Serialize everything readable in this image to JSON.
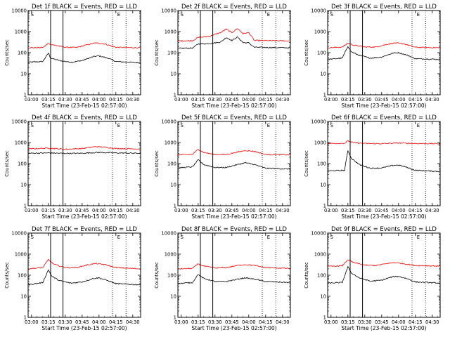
{
  "chart_data": {
    "type": "line",
    "xlabel": "Start Time (23-Feb-15 02:57:00)",
    "ylabel": "Counts/sec",
    "y_scale": "log",
    "ylim": [
      1,
      10000
    ],
    "y_ticks": [
      {
        "value": 1,
        "label": "1"
      },
      {
        "value": 10,
        "label": "10"
      },
      {
        "value": 100,
        "label": "100"
      },
      {
        "value": 1000,
        "label": "1000"
      },
      {
        "value": 10000,
        "label": "10000"
      }
    ],
    "x_ticks": [
      {
        "value": "03:00",
        "label": "03:00"
      },
      {
        "value": "03:15",
        "label": "03:15"
      },
      {
        "value": "03:30",
        "label": "03:30"
      },
      {
        "value": "03:45",
        "label": "03:45"
      },
      {
        "value": "04:00",
        "label": "04:00"
      },
      {
        "value": "04:15",
        "label": "04:15"
      },
      {
        "value": "04:30",
        "label": "04:30"
      }
    ],
    "xlim": [
      "02:57",
      "04:37"
    ],
    "series_colors": {
      "Events": "#000000",
      "LLD": "#ff0000"
    },
    "markers": {
      "solid_times": [
        "03:17",
        "03:28"
      ],
      "dotted_times": [
        "04:12",
        "04:24"
      ],
      "flag_labels": [
        "S",
        "E"
      ],
      "flag_times": [
        "02:58",
        "04:15"
      ]
    },
    "panels": [
      {
        "title": "Det 1f BLACK = Events, RED = LLD",
        "series": [
          {
            "color": "#000000",
            "points": [
              [
                "02:57",
                35
              ],
              [
                "03:10",
                38
              ],
              [
                "03:15",
                95
              ],
              [
                "03:17",
                55
              ],
              [
                "03:25",
                42
              ],
              [
                "03:35",
                35
              ],
              [
                "03:45",
                42
              ],
              [
                "03:55",
                65
              ],
              [
                "04:00",
                70
              ],
              [
                "04:08",
                55
              ],
              [
                "04:15",
                38
              ],
              [
                "04:37",
                33
              ]
            ]
          },
          {
            "color": "#ff0000",
            "points": [
              [
                "02:57",
                170
              ],
              [
                "03:10",
                175
              ],
              [
                "03:15",
                270
              ],
              [
                "03:20",
                230
              ],
              [
                "03:30",
                180
              ],
              [
                "03:40",
                175
              ],
              [
                "03:50",
                240
              ],
              [
                "03:57",
                290
              ],
              [
                "04:05",
                260
              ],
              [
                "04:15",
                180
              ],
              [
                "04:37",
                170
              ]
            ]
          }
        ]
      },
      {
        "title": "Det 2f BLACK = Events, RED = LLD",
        "series": [
          {
            "color": "#000000",
            "points": [
              [
                "02:57",
                160
              ],
              [
                "03:10",
                165
              ],
              [
                "03:15",
                260
              ],
              [
                "03:25",
                270
              ],
              [
                "03:35",
                320
              ],
              [
                "03:40",
                520
              ],
              [
                "03:45",
                380
              ],
              [
                "03:50",
                550
              ],
              [
                "03:55",
                300
              ],
              [
                "04:00",
                290
              ],
              [
                "04:05",
                180
              ],
              [
                "04:37",
                170
              ]
            ]
          },
          {
            "color": "#ff0000",
            "points": [
              [
                "02:57",
                360
              ],
              [
                "03:10",
                370
              ],
              [
                "03:15",
                520
              ],
              [
                "03:25",
                600
              ],
              [
                "03:35",
                900
              ],
              [
                "03:40",
                1300
              ],
              [
                "03:45",
                900
              ],
              [
                "03:50",
                1400
              ],
              [
                "03:55",
                800
              ],
              [
                "04:00",
                900
              ],
              [
                "04:05",
                380
              ],
              [
                "04:37",
                360
              ]
            ]
          }
        ]
      },
      {
        "title": "Det 3f BLACK = Events, RED = LLD",
        "series": [
          {
            "color": "#000000",
            "points": [
              [
                "02:57",
                48
              ],
              [
                "03:10",
                55
              ],
              [
                "03:15",
                200
              ],
              [
                "03:18",
                110
              ],
              [
                "03:25",
                75
              ],
              [
                "03:35",
                55
              ],
              [
                "03:45",
                62
              ],
              [
                "03:55",
                95
              ],
              [
                "04:00",
                100
              ],
              [
                "04:08",
                75
              ],
              [
                "04:15",
                52
              ],
              [
                "04:37",
                48
              ]
            ]
          },
          {
            "color": "#ff0000",
            "points": [
              [
                "02:57",
                170
              ],
              [
                "03:10",
                185
              ],
              [
                "03:15",
                280
              ],
              [
                "03:20",
                230
              ],
              [
                "03:30",
                185
              ],
              [
                "03:40",
                185
              ],
              [
                "03:50",
                250
              ],
              [
                "03:57",
                290
              ],
              [
                "04:05",
                260
              ],
              [
                "04:15",
                180
              ],
              [
                "04:37",
                170
              ]
            ]
          }
        ]
      },
      {
        "title": "Det 4f BLACK = Events, RED = LLD",
        "series": [
          {
            "color": "#000000",
            "points": [
              [
                "02:57",
                310
              ],
              [
                "03:15",
                320
              ],
              [
                "03:30",
                305
              ],
              [
                "03:45",
                310
              ],
              [
                "04:00",
                340
              ],
              [
                "04:15",
                320
              ],
              [
                "04:37",
                310
              ]
            ]
          },
          {
            "color": "#ff0000",
            "points": [
              [
                "02:57",
                500
              ],
              [
                "03:15",
                540
              ],
              [
                "03:30",
                480
              ],
              [
                "03:45",
                520
              ],
              [
                "03:57",
                640
              ],
              [
                "04:05",
                600
              ],
              [
                "04:15",
                520
              ],
              [
                "04:37",
                500
              ]
            ]
          }
        ]
      },
      {
        "title": "Det 5f BLACK = Events, RED = LLD",
        "series": [
          {
            "color": "#000000",
            "points": [
              [
                "02:57",
                62
              ],
              [
                "03:10",
                70
              ],
              [
                "03:15",
                150
              ],
              [
                "03:20",
                90
              ],
              [
                "03:30",
                65
              ],
              [
                "03:40",
                65
              ],
              [
                "03:50",
                90
              ],
              [
                "03:57",
                110
              ],
              [
                "04:05",
                90
              ],
              [
                "04:15",
                60
              ],
              [
                "04:37",
                55
              ]
            ]
          },
          {
            "color": "#ff0000",
            "points": [
              [
                "02:57",
                260
              ],
              [
                "03:10",
                270
              ],
              [
                "03:15",
                480
              ],
              [
                "03:20",
                340
              ],
              [
                "03:30",
                270
              ],
              [
                "03:40",
                270
              ],
              [
                "03:50",
                350
              ],
              [
                "03:57",
                420
              ],
              [
                "04:05",
                380
              ],
              [
                "04:15",
                270
              ],
              [
                "04:37",
                260
              ]
            ]
          }
        ]
      },
      {
        "title": "Det 6f BLACK = Events, RED = LLD",
        "series": [
          {
            "color": "#000000",
            "points": [
              [
                "02:57",
                45
              ],
              [
                "03:12",
                48
              ],
              [
                "03:15",
                420
              ],
              [
                "03:18",
                180
              ],
              [
                "03:25",
                90
              ],
              [
                "03:35",
                60
              ],
              [
                "03:45",
                62
              ],
              [
                "03:55",
                82
              ],
              [
                "04:00",
                85
              ],
              [
                "04:08",
                65
              ],
              [
                "04:15",
                48
              ],
              [
                "04:37",
                42
              ]
            ]
          },
          {
            "color": "#ff0000",
            "points": [
              [
                "02:57",
                900
              ],
              [
                "03:12",
                920
              ],
              [
                "03:15",
                1200
              ],
              [
                "03:20",
                1000
              ],
              [
                "03:30",
                900
              ],
              [
                "03:45",
                880
              ],
              [
                "04:00",
                950
              ],
              [
                "04:15",
                900
              ],
              [
                "04:37",
                880
              ]
            ]
          }
        ]
      },
      {
        "title": "Det 7f BLACK = Events, RED = LLD",
        "series": [
          {
            "color": "#000000",
            "points": [
              [
                "02:57",
                35
              ],
              [
                "03:10",
                45
              ],
              [
                "03:15",
                180
              ],
              [
                "03:18",
                90
              ],
              [
                "03:25",
                55
              ],
              [
                "03:35",
                42
              ],
              [
                "03:45",
                48
              ],
              [
                "03:55",
                70
              ],
              [
                "04:00",
                75
              ],
              [
                "04:08",
                55
              ],
              [
                "04:15",
                40
              ],
              [
                "04:37",
                35
              ]
            ]
          },
          {
            "color": "#ff0000",
            "points": [
              [
                "02:57",
                200
              ],
              [
                "03:10",
                230
              ],
              [
                "03:15",
                550
              ],
              [
                "03:20",
                330
              ],
              [
                "03:30",
                230
              ],
              [
                "03:40",
                230
              ],
              [
                "03:50",
                310
              ],
              [
                "03:57",
                360
              ],
              [
                "04:05",
                320
              ],
              [
                "04:15",
                230
              ],
              [
                "04:37",
                200
              ]
            ]
          }
        ]
      },
      {
        "title": "Det 8f BLACK = Events, RED = LLD",
        "series": [
          {
            "color": "#000000",
            "points": [
              [
                "02:57",
                40
              ],
              [
                "03:10",
                45
              ],
              [
                "03:15",
                110
              ],
              [
                "03:20",
                70
              ],
              [
                "03:30",
                50
              ],
              [
                "03:40",
                50
              ],
              [
                "03:50",
                65
              ],
              [
                "03:57",
                75
              ],
              [
                "04:05",
                65
              ],
              [
                "04:15",
                50
              ],
              [
                "04:37",
                45
              ]
            ]
          },
          {
            "color": "#ff0000",
            "points": [
              [
                "02:57",
                200
              ],
              [
                "03:10",
                210
              ],
              [
                "03:15",
                350
              ],
              [
                "03:20",
                270
              ],
              [
                "03:30",
                220
              ],
              [
                "03:40",
                230
              ],
              [
                "03:50",
                290
              ],
              [
                "03:57",
                320
              ],
              [
                "04:05",
                290
              ],
              [
                "04:15",
                230
              ],
              [
                "04:37",
                210
              ]
            ]
          }
        ]
      },
      {
        "title": "Det 9f BLACK = Events, RED = LLD",
        "series": [
          {
            "color": "#000000",
            "points": [
              [
                "02:57",
                42
              ],
              [
                "03:10",
                45
              ],
              [
                "03:15",
                250
              ],
              [
                "03:18",
                130
              ],
              [
                "03:25",
                75
              ],
              [
                "03:35",
                52
              ],
              [
                "03:45",
                58
              ],
              [
                "03:55",
                85
              ],
              [
                "04:00",
                88
              ],
              [
                "04:08",
                68
              ],
              [
                "04:15",
                48
              ],
              [
                "04:37",
                42
              ]
            ]
          },
          {
            "color": "#ff0000",
            "points": [
              [
                "02:57",
                260
              ],
              [
                "03:10",
                280
              ],
              [
                "03:15",
                550
              ],
              [
                "03:20",
                400
              ],
              [
                "03:30",
                300
              ],
              [
                "03:40",
                290
              ],
              [
                "03:50",
                360
              ],
              [
                "03:57",
                400
              ],
              [
                "04:05",
                350
              ],
              [
                "04:15",
                290
              ],
              [
                "04:37",
                270
              ]
            ]
          }
        ]
      }
    ]
  }
}
